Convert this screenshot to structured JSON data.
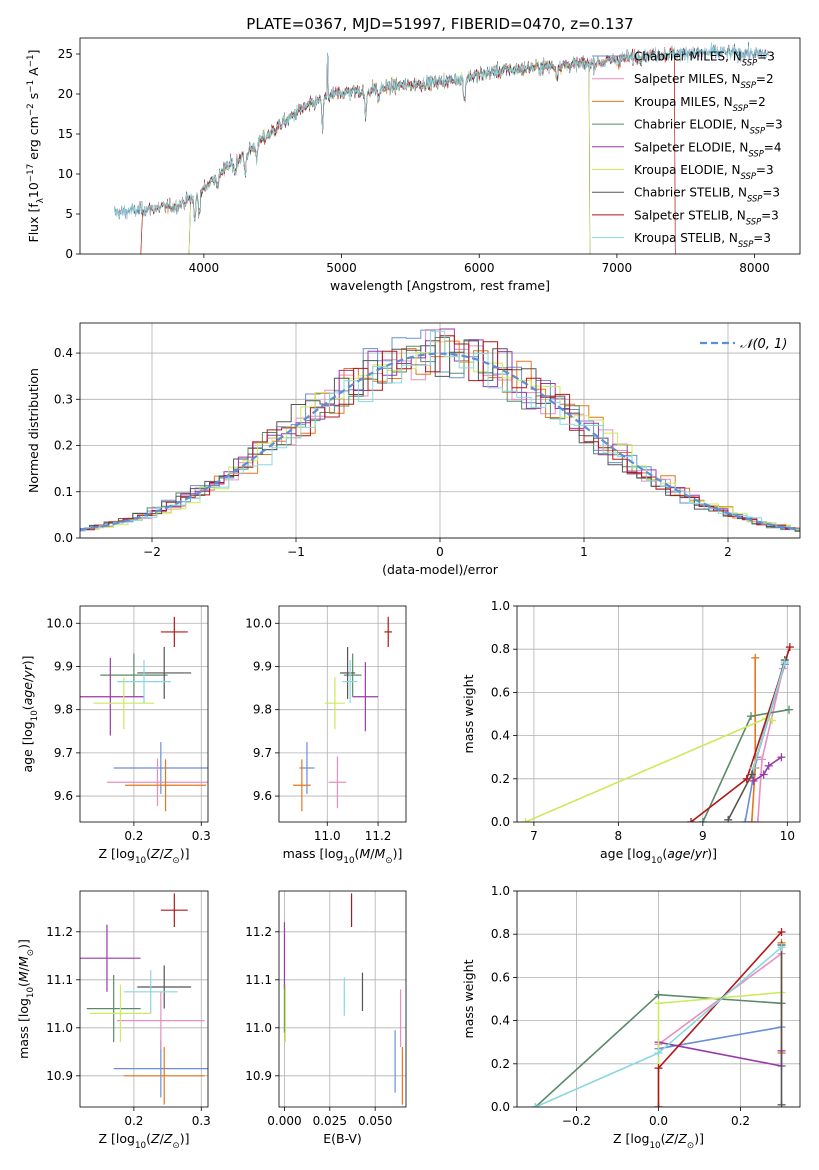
{
  "colors": {
    "chabrier_miles": "#6a8fd6",
    "salpeter_miles": "#e88fc0",
    "kroupa_miles": "#e6761e",
    "chabrier_elodie": "#5a8a6a",
    "salpeter_elodie": "#9a3aaa",
    "kroupa_elodie": "#ccea5a",
    "chabrier_stelib": "#555555",
    "salpeter_stelib": "#b01818",
    "kroupa_stelib": "#88d8e0"
  },
  "chart_data": [
    {
      "type": "line",
      "title": "PLATE=0367, MJD=51997, FIBERID=0470, z=0.137",
      "xlabel": "wavelength [Angstrom, rest frame]",
      "ylabel": "Flux [f_λ10^-17 erg cm^-2 s^-1 A^-1]",
      "xlim": [
        3100,
        8330
      ],
      "ylim": [
        0,
        27
      ],
      "xticks": [
        "4000",
        "5000",
        "6000",
        "7000",
        "8000"
      ],
      "yticks": [
        "0",
        "5",
        "10",
        "15",
        "20",
        "25"
      ],
      "legend_position": "right",
      "series": [
        {
          "name": "Chabrier MILES, N_SSP=3",
          "x_range": [
            3350,
            8100
          ]
        },
        {
          "name": "Salpeter MILES, N_SSP=2",
          "x_range": [
            3350,
            8100
          ]
        },
        {
          "name": "Kroupa MILES, N_SSP=2",
          "x_range": [
            3550,
            7420
          ]
        },
        {
          "name": "Chabrier ELODIE, N_SSP=3",
          "x_range": [
            3900,
            6800
          ]
        },
        {
          "name": "Salpeter ELODIE, N_SSP=4",
          "x_range": [
            3900,
            6800
          ]
        },
        {
          "name": "Kroupa ELODIE, N_SSP=3",
          "x_range": [
            3900,
            6800
          ]
        },
        {
          "name": "Chabrier STELIB, N_SSP=3",
          "x_range": [
            3350,
            8100
          ]
        },
        {
          "name": "Salpeter STELIB, N_SSP=3",
          "x_range": [
            3550,
            7420
          ]
        },
        {
          "name": "Kroupa STELIB, N_SSP=3",
          "x_range": [
            3350,
            8100
          ]
        }
      ],
      "continuum": {
        "x": [
          3350,
          3600,
          3800,
          3950,
          4100,
          4300,
          4500,
          4700,
          4900,
          5000,
          5200,
          5400,
          5600,
          5800,
          6000,
          6200,
          6500,
          6800,
          7000,
          7200,
          7500,
          7800,
          8100
        ],
        "y": [
          5.2,
          5.6,
          6.0,
          7.3,
          10.0,
          12.5,
          15.4,
          18.0,
          19.7,
          20.2,
          20.5,
          21.0,
          21.3,
          21.7,
          22.4,
          23.0,
          23.5,
          23.8,
          24.3,
          24.8,
          25.2,
          25.2,
          25.0
        ]
      }
    },
    {
      "type": "step",
      "xlabel": "(data-model)/error",
      "ylabel": "Normed distribution",
      "xlim": [
        -2.5,
        2.5
      ],
      "ylim": [
        0,
        0.465
      ],
      "xticks": [
        "−2",
        "−1",
        "0",
        "1",
        "2"
      ],
      "yticks": [
        "0.0",
        "0.1",
        "0.2",
        "0.3",
        "0.4"
      ],
      "legend_position": "top-right",
      "gaussian_label": "𝒩(0, 1)",
      "bin_width": 0.1
    },
    {
      "type": "scatter",
      "xlabel": "Z [log10(Z/Z⊙)]",
      "ylabel": "age  [log10(age/yr)]",
      "xlim": [
        0.12,
        0.31
      ],
      "ylim": [
        9.54,
        10.04
      ],
      "xticks": [
        "0.2",
        "0.3"
      ],
      "yticks": [
        "9.6",
        "9.7",
        "9.8",
        "9.9",
        "10.0"
      ],
      "points": [
        {
          "series": "Chabrier MILES",
          "x": 0.24,
          "y": 9.665,
          "xerr": 0.07,
          "yerr": 0.06
        },
        {
          "series": "Salpeter MILES",
          "x": 0.235,
          "y": 9.632,
          "xerr": 0.075,
          "yerr": 0.055
        },
        {
          "series": "Kroupa MILES",
          "x": 0.247,
          "y": 9.625,
          "xerr": 0.06,
          "yerr": 0.06
        },
        {
          "series": "Chabrier ELODIE",
          "x": 0.2,
          "y": 9.88,
          "xerr": 0.05,
          "yerr": 0.05
        },
        {
          "series": "Salpeter ELODIE",
          "x": 0.165,
          "y": 9.83,
          "xerr": 0.05,
          "yerr": 0.09
        },
        {
          "series": "Kroupa ELODIE",
          "x": 0.185,
          "y": 9.815,
          "xerr": 0.045,
          "yerr": 0.06
        },
        {
          "series": "Chabrier STELIB",
          "x": 0.245,
          "y": 9.885,
          "xerr": 0.04,
          "yerr": 0.06
        },
        {
          "series": "Salpeter STELIB",
          "x": 0.26,
          "y": 9.98,
          "xerr": 0.02,
          "yerr": 0.035
        },
        {
          "series": "Kroupa STELIB",
          "x": 0.215,
          "y": 9.865,
          "xerr": 0.04,
          "yerr": 0.05
        }
      ]
    },
    {
      "type": "scatter",
      "xlabel": "mass [log10(M/M⊙)]",
      "ylabel": "",
      "xlim": [
        10.81,
        11.31
      ],
      "ylim": [
        9.54,
        10.04
      ],
      "xticks": [
        "11.0",
        "11.2"
      ],
      "yticks": [
        "9.6",
        "9.7",
        "9.8",
        "9.9",
        "10.0"
      ],
      "points": [
        {
          "series": "Chabrier MILES",
          "x": 10.92,
          "y": 9.665,
          "xerr": 0.03,
          "yerr": 0.06
        },
        {
          "series": "Salpeter MILES",
          "x": 11.04,
          "y": 9.632,
          "xerr": 0.035,
          "yerr": 0.06
        },
        {
          "series": "Kroupa MILES",
          "x": 10.9,
          "y": 9.625,
          "xerr": 0.035,
          "yerr": 0.06
        },
        {
          "series": "Chabrier ELODIE",
          "x": 11.1,
          "y": 9.88,
          "xerr": 0.035,
          "yerr": 0.05
        },
        {
          "series": "Salpeter ELODIE",
          "x": 11.15,
          "y": 9.83,
          "xerr": 0.05,
          "yerr": 0.08
        },
        {
          "series": "Kroupa ELODIE",
          "x": 11.03,
          "y": 9.815,
          "xerr": 0.04,
          "yerr": 0.06
        },
        {
          "series": "Chabrier STELIB",
          "x": 11.08,
          "y": 9.885,
          "xerr": 0.03,
          "yerr": 0.06
        },
        {
          "series": "Salpeter STELIB",
          "x": 11.24,
          "y": 9.98,
          "xerr": 0.015,
          "yerr": 0.035
        },
        {
          "series": "Kroupa STELIB",
          "x": 11.09,
          "y": 9.865,
          "xerr": 0.03,
          "yerr": 0.05
        }
      ]
    },
    {
      "type": "line",
      "xlabel": "age  [log10(age/yr)]",
      "ylabel": "mass weight",
      "xlim": [
        6.8,
        10.15
      ],
      "ylim": [
        0,
        1.0
      ],
      "xticks": [
        "7",
        "8",
        "9",
        "10"
      ],
      "yticks": [
        "0.0",
        "0.2",
        "0.4",
        "0.6",
        "0.8",
        "1.0"
      ],
      "series": [
        {
          "name": "Chabrier MILES",
          "x": [
            9.5,
            9.64,
            9.97
          ],
          "y": [
            0.0,
            0.3,
            0.73
          ]
        },
        {
          "name": "Salpeter MILES",
          "x": [
            9.65,
            9.7,
            9.95
          ],
          "y": [
            0.0,
            0.29,
            0.71
          ]
        },
        {
          "name": "Kroupa MILES",
          "x": [
            9.58,
            9.62,
            9.62
          ],
          "y": [
            0.0,
            0.25,
            0.76
          ]
        },
        {
          "name": "Chabrier ELODIE",
          "x": [
            9.0,
            9.57,
            10.02
          ],
          "y": [
            0.0,
            0.49,
            0.52
          ]
        },
        {
          "name": "Salpeter ELODIE",
          "x": [
            9.6,
            9.72,
            9.78,
            9.93
          ],
          "y": [
            0.19,
            0.22,
            0.26,
            0.3
          ]
        },
        {
          "name": "Kroupa ELODIE",
          "x": [
            6.9,
            9.75,
            9.82
          ],
          "y": [
            0.0,
            0.48,
            0.47
          ]
        },
        {
          "name": "Chabrier STELIB",
          "x": [
            9.3,
            9.58,
            9.97
          ],
          "y": [
            0.01,
            0.22,
            0.75
          ]
        },
        {
          "name": "Salpeter STELIB",
          "x": [
            8.86,
            9.52,
            10.03
          ],
          "y": [
            0.0,
            0.2,
            0.81
          ]
        },
        {
          "name": "Kroupa STELIB",
          "x": [
            9.6,
            9.97
          ],
          "y": [
            0.25,
            0.74
          ]
        }
      ]
    },
    {
      "type": "scatter",
      "xlabel": "Z [log10(Z/Z⊙)]",
      "ylabel": "mass [log10(M/M⊙)]",
      "xlim": [
        0.12,
        0.31
      ],
      "ylim": [
        10.835,
        11.285
      ],
      "xticks": [
        "0.2",
        "0.3"
      ],
      "yticks": [
        "10.9",
        "11.0",
        "11.1",
        "11.2"
      ],
      "points": [
        {
          "series": "Chabrier MILES",
          "x": 0.24,
          "y": 10.915,
          "xerr": 0.07,
          "yerr": 0.06
        },
        {
          "series": "Salpeter MILES",
          "x": 0.24,
          "y": 11.015,
          "xerr": 0.065,
          "yerr": 0.06
        },
        {
          "series": "Kroupa MILES",
          "x": 0.245,
          "y": 10.9,
          "xerr": 0.06,
          "yerr": 0.06
        },
        {
          "series": "Chabrier ELODIE",
          "x": 0.17,
          "y": 11.04,
          "xerr": 0.04,
          "yerr": 0.07
        },
        {
          "series": "Salpeter ELODIE",
          "x": 0.16,
          "y": 11.145,
          "xerr": 0.05,
          "yerr": 0.07
        },
        {
          "series": "Kroupa ELODIE",
          "x": 0.18,
          "y": 11.03,
          "xerr": 0.045,
          "yerr": 0.06
        },
        {
          "series": "Chabrier STELIB",
          "x": 0.245,
          "y": 11.085,
          "xerr": 0.04,
          "yerr": 0.045
        },
        {
          "series": "Salpeter STELIB",
          "x": 0.26,
          "y": 11.245,
          "xerr": 0.02,
          "yerr": 0.035
        },
        {
          "series": "Kroupa STELIB",
          "x": 0.225,
          "y": 11.075,
          "xerr": 0.04,
          "yerr": 0.045
        }
      ]
    },
    {
      "type": "scatter",
      "xlabel": "E(B-V)",
      "ylabel": "",
      "xlim": [
        -0.003,
        0.067
      ],
      "ylim": [
        10.835,
        11.285
      ],
      "xticks": [
        "0.000",
        "0.025",
        "0.050"
      ],
      "yticks": [
        "10.9",
        "11.0",
        "11.1",
        "11.2"
      ],
      "points": [
        {
          "series": "Chabrier MILES",
          "x": 0.061,
          "y": 10.93,
          "xerr": 0,
          "yerr": 0.065
        },
        {
          "series": "Salpeter MILES",
          "x": 0.064,
          "y": 11.02,
          "xerr": 0,
          "yerr": 0.06
        },
        {
          "series": "Kroupa MILES",
          "x": 0.065,
          "y": 10.9,
          "xerr": 0,
          "yerr": 0.06
        },
        {
          "series": "Chabrier ELODIE",
          "x": 0.0,
          "y": 11.04,
          "xerr": 0,
          "yerr": 0.05
        },
        {
          "series": "Salpeter ELODIE",
          "x": 0.0,
          "y": 11.15,
          "xerr": 0,
          "yerr": 0.07
        },
        {
          "series": "Kroupa ELODIE",
          "x": 0.0005,
          "y": 11.03,
          "xerr": 0,
          "yerr": 0.06
        },
        {
          "series": "Chabrier STELIB",
          "x": 0.043,
          "y": 11.075,
          "xerr": 0,
          "yerr": 0.04
        },
        {
          "series": "Salpeter STELIB",
          "x": 0.037,
          "y": 11.245,
          "xerr": 0,
          "yerr": 0.035
        },
        {
          "series": "Kroupa STELIB",
          "x": 0.033,
          "y": 11.065,
          "xerr": 0,
          "yerr": 0.04
        }
      ]
    },
    {
      "type": "line",
      "xlabel": "Z [log10(Z/Z⊙)]",
      "ylabel": "mass weight",
      "xlim": [
        -0.345,
        0.345
      ],
      "ylim": [
        0,
        1.0
      ],
      "xticks": [
        "−0.2",
        "0.0",
        "0.2"
      ],
      "yticks": [
        "0.0",
        "0.2",
        "0.4",
        "0.6",
        "0.8",
        "1.0"
      ],
      "series": [
        {
          "name": "Chabrier MILES",
          "x": [
            0.0,
            0.3
          ],
          "y": [
            0.27,
            0.37
          ]
        },
        {
          "name": "Salpeter MILES",
          "x": [
            0.0,
            0.3
          ],
          "y": [
            0.29,
            0.71
          ]
        },
        {
          "name": "Kroupa MILES",
          "x": [
            0.3,
            0.3
          ],
          "y": [
            0.25,
            0.76
          ]
        },
        {
          "name": "Chabrier ELODIE",
          "x": [
            -0.3,
            0.0,
            0.3
          ],
          "y": [
            0.0,
            0.52,
            0.48
          ]
        },
        {
          "name": "Salpeter ELODIE",
          "x": [
            0.0,
            0.3,
            0.3
          ],
          "y": [
            0.3,
            0.19,
            0.26
          ]
        },
        {
          "name": "Kroupa ELODIE",
          "x": [
            0.0,
            0.0,
            0.3
          ],
          "y": [
            0.0,
            0.48,
            0.53
          ]
        },
        {
          "name": "Chabrier STELIB",
          "x": [
            0.3,
            0.3
          ],
          "y": [
            0.01,
            0.75
          ]
        },
        {
          "name": "Salpeter STELIB",
          "x": [
            0.0,
            0.0,
            0.3
          ],
          "y": [
            0.0,
            0.18,
            0.81
          ]
        },
        {
          "name": "Kroupa STELIB",
          "x": [
            -0.3,
            0.0,
            0.3
          ],
          "y": [
            0.0,
            0.25,
            0.74
          ]
        }
      ]
    }
  ],
  "text": {
    "title": "PLATE=0367, MJD=51997, FIBERID=0470, z=0.137"
  }
}
